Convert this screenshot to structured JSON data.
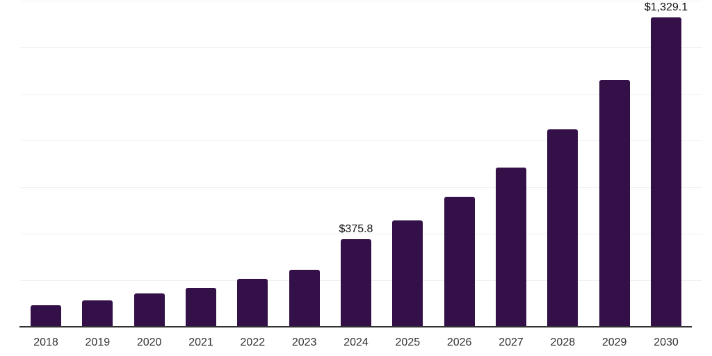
{
  "chart_data": {
    "type": "bar",
    "title": "",
    "xlabel": "",
    "ylabel": "",
    "categories": [
      "2018",
      "2019",
      "2020",
      "2021",
      "2022",
      "2023",
      "2024",
      "2025",
      "2026",
      "2027",
      "2028",
      "2029",
      "2030"
    ],
    "values": [
      92.5,
      113.4,
      143.3,
      167.2,
      206.0,
      244.8,
      375.8,
      456.7,
      558.2,
      683.6,
      847.8,
      1059.7,
      1329.1
    ],
    "data_labels": [
      {
        "category": "2024",
        "text": "$375.8"
      },
      {
        "category": "2030",
        "text": "$1,329.1"
      }
    ],
    "ylim": [
      0,
      1400
    ],
    "gridline_step": 200,
    "grid": "horizontal-only",
    "y_axis_tick_labels_visible": false,
    "legend_position": "none",
    "colors": {
      "bar": "#341048",
      "axis_line": "#333333",
      "gridline": "#f0f0f0",
      "x_label_text": "#333333",
      "data_label_text": "#111111",
      "background": "#ffffff"
    }
  }
}
